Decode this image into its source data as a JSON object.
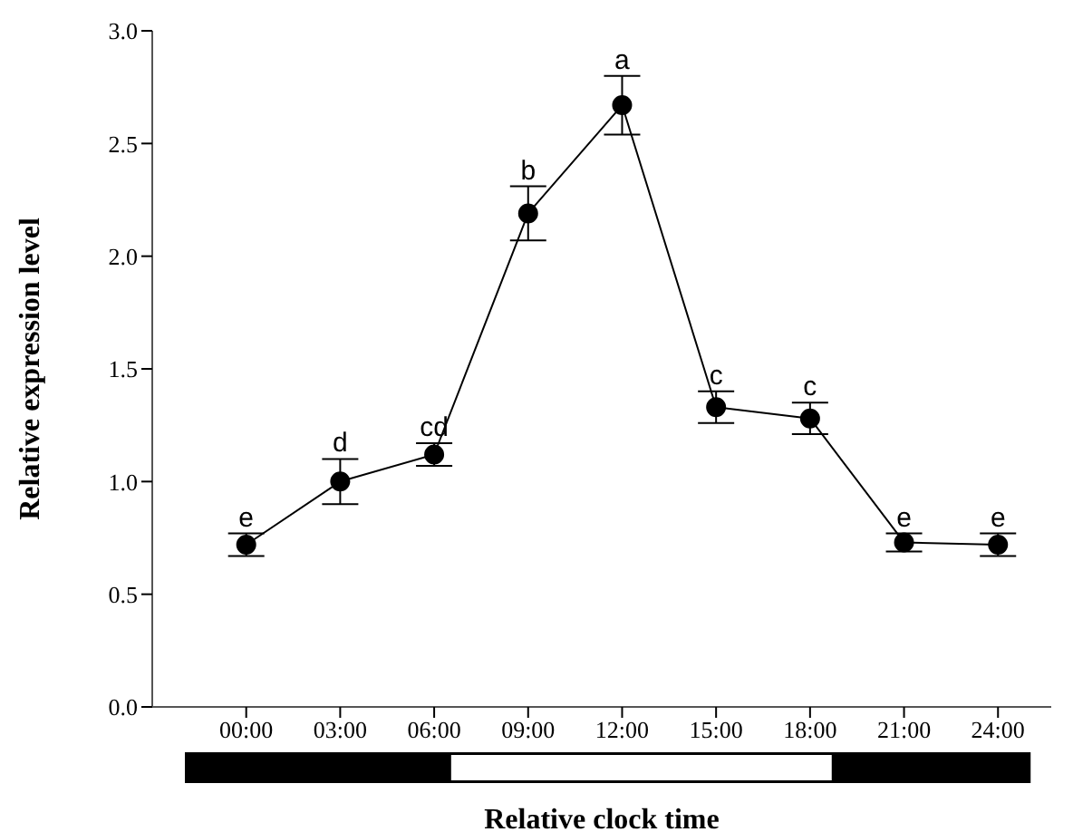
{
  "chart_data": {
    "type": "line",
    "xlabel": "Relative clock time",
    "ylabel": "Relative expression level",
    "x": [
      0,
      3,
      6,
      9,
      12,
      15,
      18,
      21,
      24
    ],
    "series": [
      {
        "color": "#000000",
        "values": [
          0.72,
          1.0,
          1.12,
          2.19,
          2.67,
          1.33,
          1.28,
          0.73,
          0.72
        ],
        "errors": [
          0.05,
          0.1,
          0.05,
          0.12,
          0.13,
          0.07,
          0.07,
          0.04,
          0.05
        ]
      }
    ],
    "xlim": [
      -3,
      25.7
    ],
    "xticks": [
      {
        "value": 0,
        "label": "00:00"
      },
      {
        "value": 3,
        "label": "03:00"
      },
      {
        "value": 6,
        "label": "06:00"
      },
      {
        "value": 9,
        "label": "09:00"
      },
      {
        "value": 12,
        "label": "12:00"
      },
      {
        "value": 15,
        "label": "15:00"
      },
      {
        "value": 18,
        "label": "18:00"
      },
      {
        "value": 21,
        "label": "21:00"
      },
      {
        "value": 24,
        "label": "24:00"
      }
    ],
    "ylim": [
      0,
      3
    ],
    "yticks": [
      {
        "value": 0,
        "label": "0.0"
      },
      {
        "value": 0.5,
        "label": "0.5"
      },
      {
        "value": 1,
        "label": "1.0"
      },
      {
        "value": 1.5,
        "label": "1.5"
      },
      {
        "value": 2,
        "label": "2.0"
      },
      {
        "value": 2.5,
        "label": "2.5"
      },
      {
        "value": 3,
        "label": "3.0"
      }
    ],
    "annotations": [
      {
        "text": "e",
        "x": 0,
        "y": 0.77
      },
      {
        "text": "d",
        "x": 3,
        "y": 1.1
      },
      {
        "text": "cd",
        "x": 6,
        "y": 1.17
      },
      {
        "text": "b",
        "x": 9,
        "y": 2.31
      },
      {
        "text": "a",
        "x": 12,
        "y": 2.8
      },
      {
        "text": "c",
        "x": 15,
        "y": 1.4
      },
      {
        "text": "c",
        "x": 18,
        "y": 1.35
      },
      {
        "text": "e",
        "x": 21,
        "y": 0.77
      },
      {
        "text": "e",
        "x": 24,
        "y": 0.77
      }
    ],
    "marker": "circle",
    "line_style": "solid",
    "grid": false,
    "legend": false
  }
}
